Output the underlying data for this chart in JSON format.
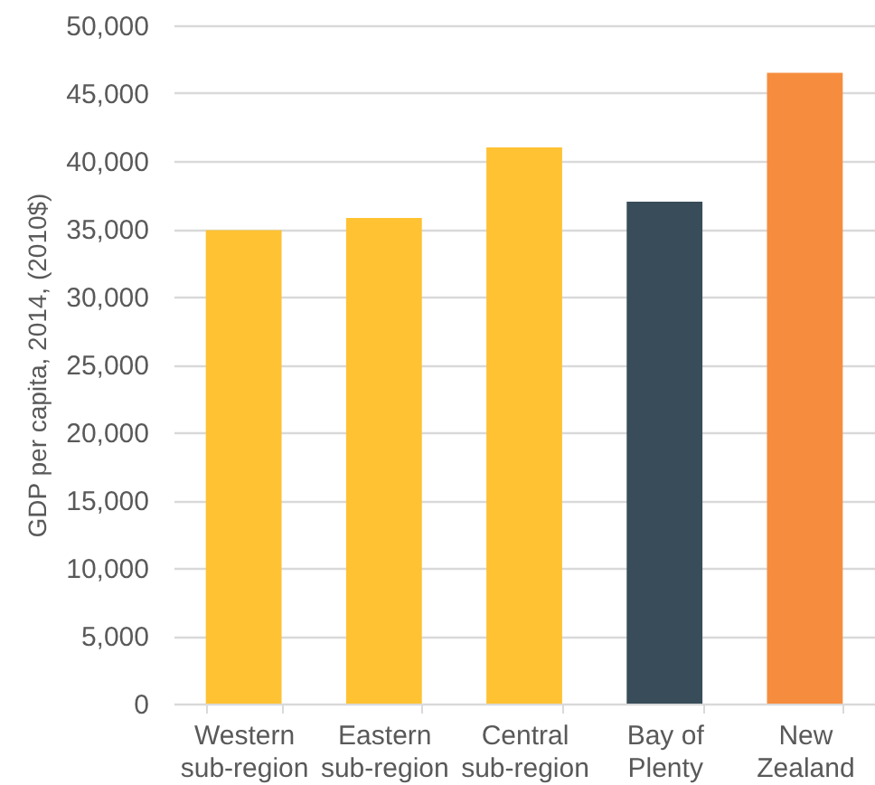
{
  "chart_data": {
    "type": "bar",
    "ylabel": "GDP per capita, 2014, (2010$)",
    "categories": [
      "Western sub-region",
      "Eastern sub-region",
      "Central sub-region",
      "Bay of Plenty",
      "New Zealand"
    ],
    "values": [
      34900,
      35800,
      41000,
      37000,
      46500
    ],
    "colors": [
      "#ffc232",
      "#ffc232",
      "#ffc232",
      "#384d59",
      "#f68d3e"
    ],
    "ylim": [
      0,
      50000
    ],
    "yticks": [
      0,
      {
        "value": 5000,
        "label": "5,000"
      },
      {
        "value": 10000,
        "label": "10,000"
      },
      {
        "value": 15000,
        "label": "15,000"
      },
      {
        "value": 20000,
        "label": "20,000"
      },
      {
        "value": 25000,
        "label": "25,000"
      },
      {
        "value": 30000,
        "label": "30,000"
      },
      {
        "value": 35000,
        "label": "35,000"
      },
      {
        "value": 40000,
        "label": "40,000"
      },
      {
        "value": 45000,
        "label": "45,000"
      },
      {
        "value": 50000,
        "label": "50,000"
      }
    ],
    "grid": "y"
  }
}
